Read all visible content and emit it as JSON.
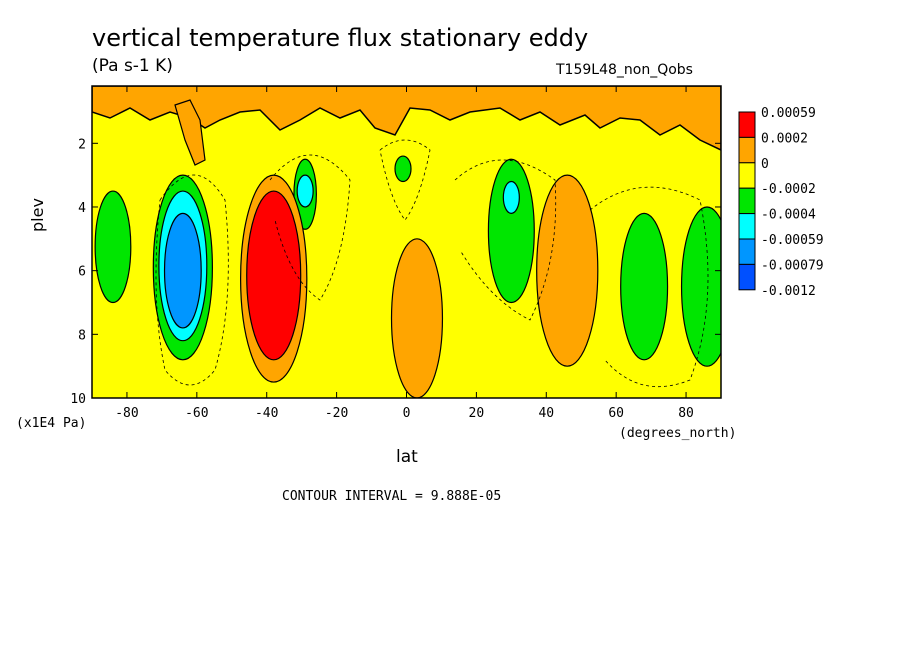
{
  "chart_data": {
    "type": "heatmap",
    "title": "vertical temperature flux stationary eddy",
    "units": "(Pa s-1 K)",
    "run_label": "T159L48_non_Qobs",
    "xlabel": "lat",
    "x_units": "(degrees_north)",
    "ylabel": "plev",
    "y_units": "(x1E4 Pa)",
    "xlim": [
      -90,
      90
    ],
    "ylim": [
      10,
      0.2
    ],
    "x_ticks": [
      "-80",
      "-60",
      "-40",
      "-20",
      "0",
      "20",
      "40",
      "60",
      "80"
    ],
    "x_tick_values": [
      -80,
      -60,
      -40,
      -20,
      0,
      20,
      40,
      60,
      80
    ],
    "y_ticks": [
      "2",
      "4",
      "6",
      "8",
      "10"
    ],
    "y_tick_values": [
      2,
      4,
      6,
      8,
      10
    ],
    "contour_interval": "CONTOUR INTERVAL = 9.888E-05",
    "legend": {
      "placement": "right",
      "levels": [
        "0.00059",
        "0.0002",
        "0",
        "-0.0002",
        "-0.0004",
        "-0.00059",
        "-0.00079",
        "-0.0012"
      ],
      "colors": [
        "#ff0000",
        "#ffa500",
        "#ffff00",
        "#00e600",
        "#00ffff",
        "#0096ff",
        "#0050ff"
      ]
    },
    "features": [
      {
        "lat": -84,
        "plev_top": 3.5,
        "plev_bottom": 7.0,
        "color": "#00e600"
      },
      {
        "lat": -64,
        "plev_top": 3.0,
        "plev_bottom": 8.8,
        "color": "#00e600"
      },
      {
        "lat": -64,
        "plev_top": 3.5,
        "plev_bottom": 8.2,
        "color": "#00ffff"
      },
      {
        "lat": -64,
        "plev_top": 4.2,
        "plev_bottom": 7.8,
        "color": "#0096ff"
      },
      {
        "lat": -29,
        "plev_top": 2.5,
        "plev_bottom": 4.7,
        "color": "#00e600"
      },
      {
        "lat": -29,
        "plev_top": 3.0,
        "plev_bottom": 4.0,
        "color": "#00ffff"
      },
      {
        "lat": -38,
        "plev_top": 3.0,
        "plev_bottom": 9.5,
        "color": "#ffa500"
      },
      {
        "lat": -38,
        "plev_top": 3.5,
        "plev_bottom": 8.8,
        "color": "#ff0000"
      },
      {
        "lat": -1,
        "plev_top": 2.4,
        "plev_bottom": 3.2,
        "color": "#00e600"
      },
      {
        "lat": 3,
        "plev_top": 5.0,
        "plev_bottom": 10.0,
        "color": "#ffa500"
      },
      {
        "lat": 30,
        "plev_top": 2.5,
        "plev_bottom": 7.0,
        "color": "#00e600"
      },
      {
        "lat": 30,
        "plev_top": 3.2,
        "plev_bottom": 4.2,
        "color": "#00ffff"
      },
      {
        "lat": 46,
        "plev_top": 3.0,
        "plev_bottom": 9.0,
        "color": "#ffa500"
      },
      {
        "lat": 68,
        "plev_top": 4.2,
        "plev_bottom": 8.8,
        "color": "#00e600"
      },
      {
        "lat": 86,
        "plev_top": 4.0,
        "plev_bottom": 9.0,
        "color": "#00e600"
      }
    ]
  }
}
